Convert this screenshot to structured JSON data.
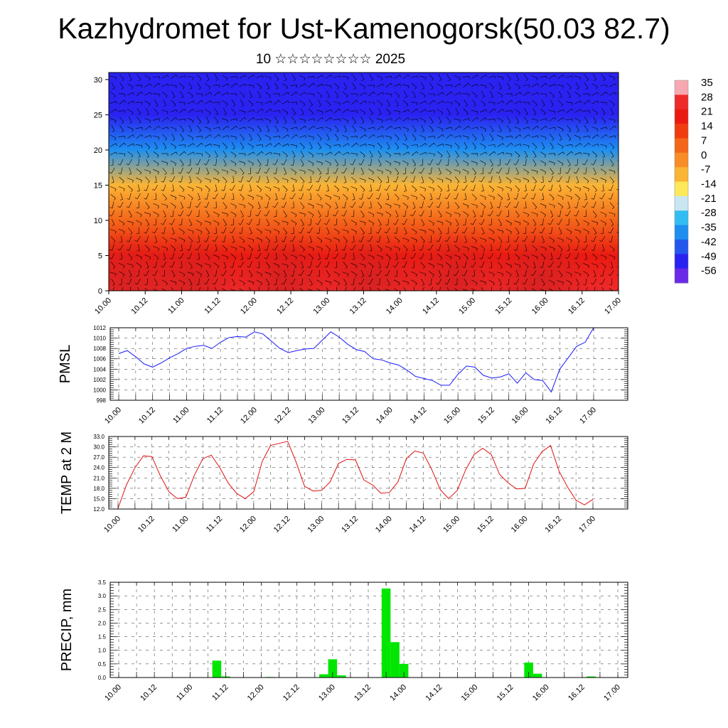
{
  "header": {
    "title": "Kazhydromet for Ust-Kamenogorsk(50.03 82.7)",
    "subtitle": "10 ☆☆☆☆☆☆☆☆ 2025"
  },
  "colors": {
    "pmsl_line": "#1a1aff",
    "temp_line": "#e01010",
    "precip_bar": "#00e600"
  },
  "chart_data": [
    {
      "type": "heatmap",
      "title": "",
      "ylabel": "",
      "ylim": [
        0,
        31
      ],
      "y_ticks": [
        "0",
        "5",
        "10",
        "15",
        "20",
        "25",
        "30"
      ],
      "x_ticks": [
        "10.00",
        "10.12",
        "11.00",
        "11.12",
        "12.00",
        "12.12",
        "13.00",
        "13.12",
        "14.00",
        "14.12",
        "15.00",
        "15.12",
        "16.00",
        "16.12",
        "17.00"
      ],
      "overlay": "wind-barbs",
      "colorbar_labels": [
        "35",
        "28",
        "21",
        "14",
        "7",
        "0",
        "-7",
        "-14",
        "-21",
        "-28",
        "-35",
        "-42",
        "-49",
        "-56"
      ],
      "colorbar_colors": [
        "#f8a8b0",
        "#ee2a2a",
        "#ea1a12",
        "#f03c10",
        "#f4661a",
        "#f88c26",
        "#fbb434",
        "#fde85a",
        "#c8e6f2",
        "#32bdf2",
        "#1e8ff0",
        "#2358ec",
        "#2a22f0",
        "#6a2ae8"
      ],
      "values_by_height": [
        {
          "height": 0,
          "value": 30
        },
        {
          "height": 5,
          "value": 18
        },
        {
          "height": 10,
          "value": 8
        },
        {
          "height": 15,
          "value": -8
        },
        {
          "height": 20,
          "value": -35
        },
        {
          "height": 25,
          "value": -52
        },
        {
          "height": 30,
          "value": -48
        }
      ]
    },
    {
      "type": "line",
      "ylabel": "PMSL",
      "ylim": [
        998,
        1012
      ],
      "y_ticks": [
        "998",
        "1000",
        "1002",
        "1004",
        "1006",
        "1008",
        "1010",
        "1012"
      ],
      "x_ticks": [
        "10.00",
        "10.12",
        "11.00",
        "11.12",
        "12.00",
        "12.12",
        "13.00",
        "13.12",
        "14.00",
        "14.12",
        "15.00",
        "15.12",
        "16.00",
        "16.12",
        "17.00"
      ],
      "x": [
        0,
        3,
        6,
        9,
        12,
        15,
        18,
        21,
        24,
        27,
        30,
        33,
        36,
        39,
        42,
        45,
        48,
        51,
        54,
        57,
        60,
        63,
        66,
        69,
        72,
        75,
        78,
        81,
        84,
        87,
        90,
        93,
        96,
        99,
        102,
        105,
        108,
        111,
        114,
        117,
        120,
        123,
        126,
        129,
        132,
        135,
        138,
        141,
        144,
        147,
        150,
        153,
        156,
        159,
        162,
        165,
        168
      ],
      "values": [
        1007,
        1007.6,
        1006.4,
        1005.0,
        1004.4,
        1005.2,
        1006.2,
        1007.0,
        1008.0,
        1008.4,
        1008.6,
        1008.0,
        1009.2,
        1010.1,
        1010.3,
        1010.2,
        1011.2,
        1010.8,
        1009.4,
        1008.0,
        1007.2,
        1007.6,
        1007.9,
        1008.0,
        1009.6,
        1011.2,
        1010.2,
        1008.8,
        1007.8,
        1007.4,
        1006.0,
        1005.8,
        1005.2,
        1004.8,
        1003.8,
        1002.6,
        1002.2,
        1001.8,
        1000.9,
        1000.9,
        1003.0,
        1004.6,
        1004.4,
        1002.8,
        1002.3,
        1002.5,
        1003.1,
        1001.3,
        1003.3,
        1002.0,
        1001.8,
        999.6,
        1004.0,
        1006.2,
        1008.4,
        1009.2,
        1012.0
      ]
    },
    {
      "type": "line",
      "ylabel": "TEMP at 2 M",
      "ylim": [
        12,
        33
      ],
      "y_ticks": [
        "12.0",
        "15.0",
        "18.0",
        "21.0",
        "24.0",
        "27.0",
        "30.0",
        "33.0"
      ],
      "x_ticks": [
        "10.00",
        "10.12",
        "11.00",
        "11.12",
        "12.00",
        "12.12",
        "13.00",
        "13.12",
        "14.00",
        "14.12",
        "15.00",
        "15.12",
        "16.00",
        "16.12",
        "17.00"
      ],
      "x": [
        0,
        3,
        6,
        9,
        12,
        15,
        18,
        21,
        24,
        27,
        30,
        33,
        36,
        39,
        42,
        45,
        48,
        51,
        54,
        57,
        60,
        63,
        66,
        69,
        72,
        75,
        78,
        81,
        84,
        87,
        90,
        93,
        96,
        99,
        102,
        105,
        108,
        111,
        114,
        117,
        120,
        123,
        126,
        129,
        132,
        135,
        138,
        141,
        144,
        147,
        150,
        153,
        156,
        159,
        162,
        165,
        168
      ],
      "values": [
        12.2,
        19.0,
        24.0,
        27.4,
        27.2,
        21.6,
        17.0,
        15.0,
        15.4,
        21.8,
        26.6,
        27.6,
        24.0,
        19.5,
        16.5,
        15.0,
        17.0,
        25.8,
        30.4,
        31.0,
        31.6,
        25.6,
        18.6,
        17.2,
        17.4,
        19.8,
        25.2,
        26.4,
        26.2,
        20.4,
        19.0,
        16.6,
        16.8,
        19.8,
        26.6,
        28.8,
        28.2,
        23.4,
        17.6,
        15.0,
        17.4,
        23.4,
        27.8,
        29.6,
        27.8,
        22.0,
        19.6,
        17.8,
        18.0,
        25.0,
        28.6,
        30.4,
        23.0,
        18.4,
        14.6,
        13.2,
        14.8
      ]
    },
    {
      "type": "bar",
      "ylabel": "PRECIP, mm",
      "ylim": [
        0,
        3.5
      ],
      "y_ticks": [
        "0.0",
        "0.5",
        "1.0",
        "1.5",
        "2.0",
        "2.5",
        "3.0",
        "3.5"
      ],
      "x_ticks": [
        "10.00",
        "10.12",
        "11.00",
        "11.12",
        "12.00",
        "12.12",
        "13.00",
        "13.12",
        "14.00",
        "14.12",
        "15.00",
        "15.12",
        "16.00",
        "16.12",
        "17.00"
      ],
      "x": [
        33,
        36,
        51,
        69,
        72,
        75,
        90,
        93,
        96,
        138,
        141,
        159
      ],
      "values": [
        0.62,
        0.04,
        0.02,
        0.12,
        0.67,
        0.08,
        3.27,
        1.3,
        0.5,
        0.55,
        0.14,
        0.04
      ]
    }
  ]
}
